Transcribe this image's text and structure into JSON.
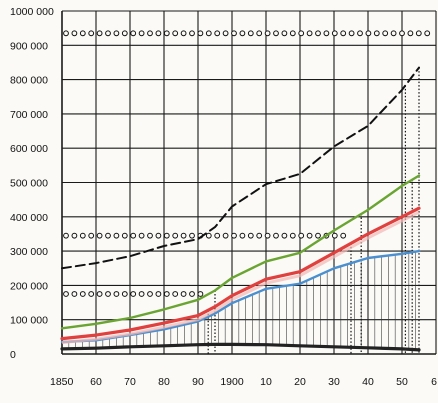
{
  "chart_data": {
    "type": "line",
    "title": "",
    "xlabel": "",
    "ylabel": "",
    "ylim": [
      0,
      1000000
    ],
    "xlim": [
      1850,
      1960
    ],
    "grid": true,
    "legend": "none",
    "x_tick_labels": [
      "1850",
      "60",
      "70",
      "80",
      "90",
      "1900",
      "10",
      "20",
      "30",
      "40",
      "50",
      "6"
    ],
    "y_tick_labels": [
      "1000 000",
      "900 000",
      "800 000",
      "700 000",
      "600 000",
      "500 000",
      "400 000",
      "300 000",
      "200 000",
      "100 000",
      "0"
    ],
    "x": [
      1850,
      1860,
      1870,
      1880,
      1890,
      1895,
      1900,
      1910,
      1920,
      1930,
      1940,
      1950,
      1955
    ],
    "series": [
      {
        "color": "#111111",
        "style": "dashed",
        "values": [
          250000,
          265000,
          285000,
          315000,
          335000,
          370000,
          430000,
          495000,
          525000,
          605000,
          665000,
          770000,
          835000
        ]
      },
      {
        "color": "#6aa532",
        "style": "solid",
        "values": [
          75000,
          88000,
          105000,
          130000,
          158000,
          185000,
          222000,
          270000,
          295000,
          360000,
          420000,
          490000,
          520000
        ]
      },
      {
        "color": "#e0413e",
        "style": "solid",
        "values": [
          45000,
          55000,
          70000,
          90000,
          112000,
          138000,
          170000,
          218000,
          240000,
          295000,
          350000,
          400000,
          425000
        ]
      },
      {
        "color": "#4a8fd0",
        "style": "solid",
        "values": [
          35000,
          40000,
          55000,
          72000,
          95000,
          118000,
          148000,
          190000,
          205000,
          250000,
          280000,
          292000,
          300000
        ]
      },
      {
        "color": "#222222",
        "style": "solid",
        "values": [
          15000,
          17000,
          21000,
          24000,
          27000,
          28000,
          28000,
          27000,
          24000,
          21000,
          18000,
          15000,
          12000
        ]
      }
    ],
    "reference_levels": [
      935000,
      345000,
      175000
    ]
  },
  "colors": {
    "grid": "#1a1a1a",
    "dashed_line": "#111111",
    "green": "#6aa532",
    "red": "#e0413e",
    "blue": "#4a8fd0",
    "base": "#222222"
  }
}
